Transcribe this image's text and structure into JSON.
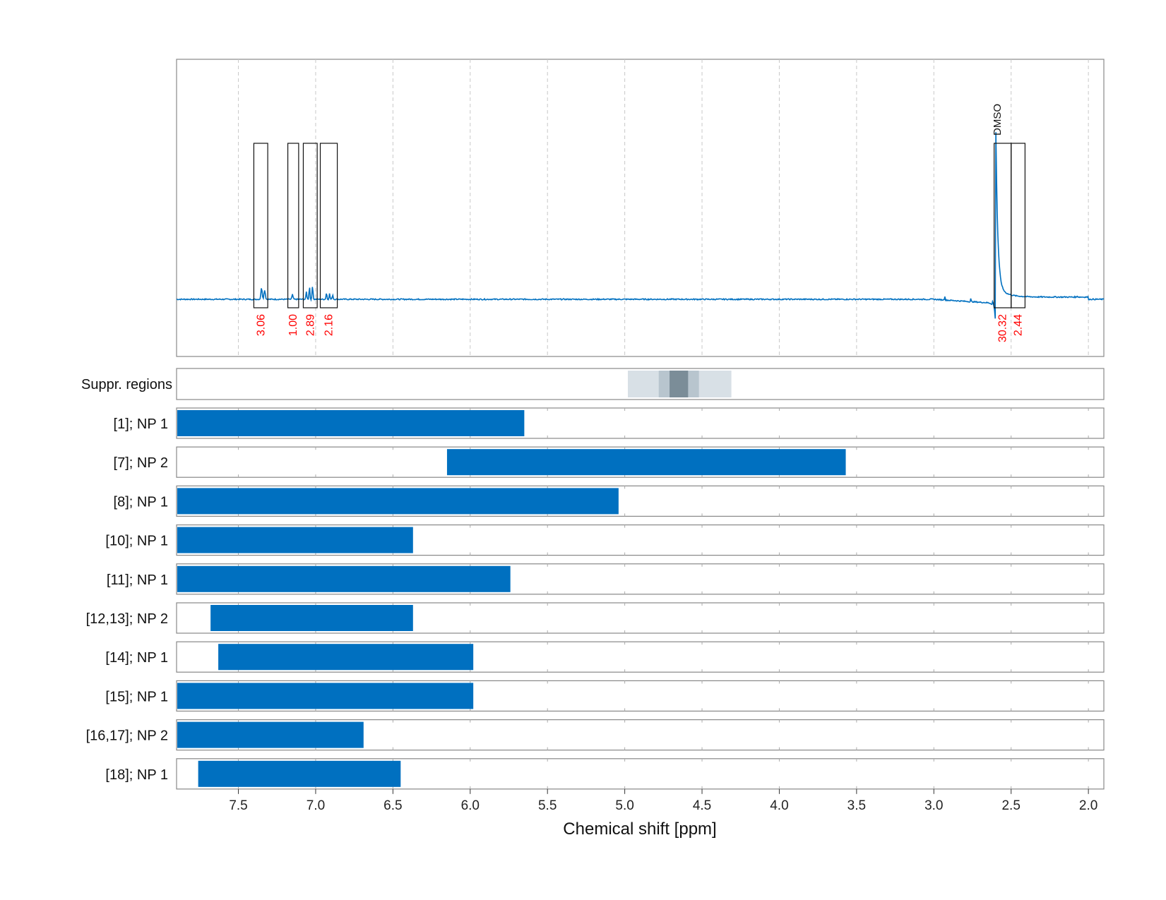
{
  "chart_data": {
    "type": "nmr-spectrum-with-range-bars",
    "xlabel": "Chemical shift [ppm]",
    "xlim": [
      7.9,
      1.9
    ],
    "x_reversed": true,
    "x_ticks": [
      7.5,
      7.0,
      6.5,
      6.0,
      5.5,
      5.0,
      4.5,
      4.0,
      3.5,
      3.0,
      2.5,
      2.0
    ],
    "x_tick_labels": [
      "7.5",
      "7.0",
      "6.5",
      "6.0",
      "5.5",
      "5.0",
      "4.5",
      "4.0",
      "3.5",
      "3.0",
      "2.5",
      "2.0"
    ],
    "grid": "vertical dashed",
    "series_color": "#0070c0",
    "spectrum": {
      "baseline": 0.0,
      "ylim": [
        -0.35,
        1.4
      ],
      "peaks": [
        {
          "x": 7.35,
          "height": 0.06,
          "width": 0.012
        },
        {
          "x": 7.33,
          "height": 0.05,
          "width": 0.012
        },
        {
          "x": 7.15,
          "height": 0.025,
          "width": 0.01
        },
        {
          "x": 7.04,
          "height": 0.07,
          "width": 0.008
        },
        {
          "x": 7.02,
          "height": 0.075,
          "width": 0.008
        },
        {
          "x": 7.06,
          "height": 0.04,
          "width": 0.008
        },
        {
          "x": 6.93,
          "height": 0.035,
          "width": 0.008
        },
        {
          "x": 6.91,
          "height": 0.03,
          "width": 0.008
        },
        {
          "x": 6.89,
          "height": 0.025,
          "width": 0.008
        },
        {
          "x": 2.93,
          "height": 0.035,
          "width": 0.004
        },
        {
          "x": 2.76,
          "height": 0.025,
          "width": 0.004
        },
        {
          "x": 2.07,
          "height": 0.01,
          "width": 0.004
        }
      ],
      "dmso_peak": {
        "x": 2.6,
        "height": 0.93,
        "negative_dip": -0.15
      }
    },
    "integrals": [
      {
        "start": 7.4,
        "end": 7.31,
        "value": "3.06"
      },
      {
        "start": 7.18,
        "end": 7.11,
        "value": "1.00"
      },
      {
        "start": 7.08,
        "end": 6.99,
        "value": "2.89"
      },
      {
        "start": 6.97,
        "end": 6.86,
        "value": "2.16"
      },
      {
        "start": 2.61,
        "end": 2.5,
        "value": "30.32"
      },
      {
        "start": 2.5,
        "end": 2.41,
        "value": "2.44"
      }
    ],
    "annotation": {
      "text": "DMSO",
      "x": 2.55
    },
    "suppression": {
      "label": "Suppr. regions",
      "bands": [
        {
          "start": 4.98,
          "end": 4.31,
          "color": "#d8e0e6"
        },
        {
          "start": 4.78,
          "end": 4.52,
          "color": "#b8c5ce"
        },
        {
          "start": 4.71,
          "end": 4.59,
          "color": "#7b8d98"
        }
      ]
    },
    "ranges": [
      {
        "label": "[1]; NP 1",
        "start": 7.9,
        "end": 5.65
      },
      {
        "label": "[7]; NP 2",
        "start": 6.15,
        "end": 3.57
      },
      {
        "label": "[8]; NP 1",
        "start": 7.9,
        "end": 5.04
      },
      {
        "label": "[10]; NP 1",
        "start": 7.9,
        "end": 6.37
      },
      {
        "label": "[11]; NP 1",
        "start": 7.9,
        "end": 5.74
      },
      {
        "label": "[12,13]; NP 2",
        "start": 7.68,
        "end": 6.37
      },
      {
        "label": "[14]; NP 1",
        "start": 7.63,
        "end": 5.98
      },
      {
        "label": "[15]; NP 1",
        "start": 7.9,
        "end": 5.98
      },
      {
        "label": "[16,17]; NP 2",
        "start": 7.9,
        "end": 6.69
      },
      {
        "label": "[18]; NP 1",
        "start": 7.76,
        "end": 6.45
      }
    ]
  }
}
